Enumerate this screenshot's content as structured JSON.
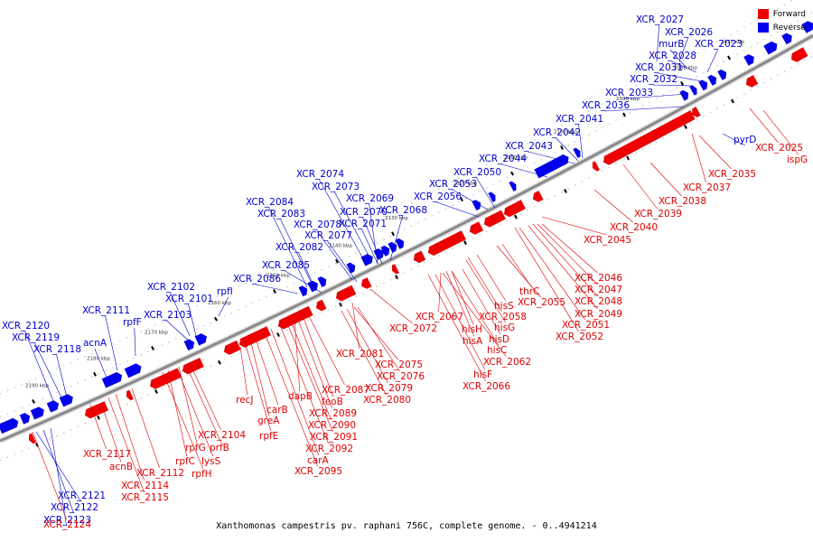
{
  "colors": {
    "forward": "#ee0000",
    "reverse": "#0000ee",
    "backbone": "#8a8a8a",
    "label_forward": "#dd0000",
    "label_reverse": "#0000cc"
  },
  "legend": [
    {
      "name": "Forward",
      "color": "#ee0000"
    },
    {
      "name": "Reverse",
      "color": "#0000ee"
    }
  ],
  "caption": "Xanthomonas campestris pv. raphani 756C, complete genome. - 0..4941214",
  "ticks": [
    "2070 kbp",
    "2080 kbp",
    "2090 kbp",
    "2100 kbp",
    "2110 kbp",
    "2120 kbp",
    "2130 kbp",
    "2140 kbp",
    "2150 kbp",
    "2160 kbp",
    "2170 kbp",
    "2180 kbp",
    "2190 kbp"
  ],
  "reverse_labels": [
    "XCR_2027",
    "XCR_2026",
    "murB",
    "XCR_2023",
    "XCR_2028",
    "XCR_2031",
    "XCR_2032",
    "XCR_2033",
    "XCR_2036",
    "XCR_2041",
    "XCR_2042",
    "XCR_2043",
    "XCR_2044",
    "XCR_2050",
    "XCR_2053",
    "XCR_2056",
    "XCR_2074",
    "XCR_2073",
    "XCR_2069",
    "XCR_2070",
    "XCR_2068",
    "XCR_2071",
    "XCR_2078",
    "XCR_2077",
    "XCR_2084",
    "XCR_2083",
    "XCR_2082",
    "XCR_2085",
    "XCR_2086",
    "rpfI",
    "XCR_2102",
    "XCR_2101",
    "XCR_2103",
    "XCR_2111",
    "rpfF",
    "acnA",
    "XCR_2120",
    "XCR_2119",
    "XCR_2118",
    "pyrD",
    "XCR_2121",
    "XCR_2122",
    "XCR_2123"
  ],
  "forward_labels": [
    "XCR_2025",
    "ispG",
    "XCR_2035",
    "XCR_2037",
    "XCR_2038",
    "XCR_2039",
    "XCR_2040",
    "XCR_2045",
    "XCR_2046",
    "XCR_2047",
    "XCR_2048",
    "XCR_2049",
    "XCR_2051",
    "XCR_2052",
    "thrC",
    "XCR_2055",
    "hisS",
    "XCR_2058",
    "hisG",
    "XCR_2067",
    "hisH",
    "hisD",
    "hisA",
    "hisC",
    "XCR_2062",
    "hisF",
    "XCR_2066",
    "XCR_2072",
    "XCR_2081",
    "XCR_2075",
    "XCR_2076",
    "XCR_2079",
    "XCR_2080",
    "XCR_2087",
    "feoB",
    "dapB",
    "XCR_2089",
    "XCR_2090",
    "XCR_2091",
    "XCR_2092",
    "carA",
    "XCR_2095",
    "carB",
    "recJ",
    "greA",
    "rpfE",
    "XCR_2104",
    "prfB",
    "rpfG",
    "lysS",
    "rpfC",
    "rpfH",
    "XCR_2112",
    "XCR_2114",
    "XCR_2115",
    "acnB",
    "XCR_2117",
    "XCR_2124"
  ]
}
